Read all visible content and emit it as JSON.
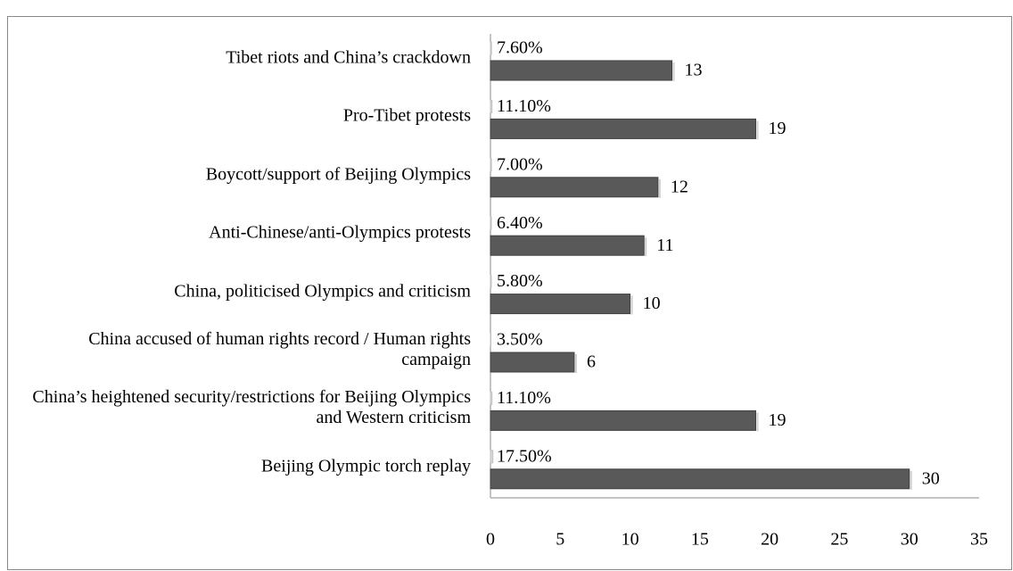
{
  "chart_data": {
    "type": "bar",
    "orientation": "horizontal",
    "categories": [
      "Tibet riots and China’s crackdown",
      "Pro-Tibet protests",
      "Boycott/support of Beijing Olympics",
      "Anti-Chinese/anti-Olympics protests",
      "China, politicised Olympics and criticism",
      "China accused of human rights record / Human rights campaign",
      "China’s heightened security/restrictions for Beijing Olympics and Western criticism",
      "Beijing Olympic torch replay"
    ],
    "series": [
      {
        "color": "#d9d9d9",
        "values": [
          0.076,
          0.111,
          0.07,
          0.064,
          0.058,
          0.035,
          0.111,
          0.175
        ],
        "value_labels": [
          "7.60%",
          "11.10%",
          "7.00%",
          "6.40%",
          "5.80%",
          "3.50%",
          "11.10%",
          "17.50%"
        ]
      },
      {
        "color": "#595959",
        "values": [
          13,
          19,
          12,
          11,
          10,
          6,
          19,
          30
        ]
      }
    ],
    "xlim": [
      0,
      35
    ],
    "xticks": [
      0,
      5,
      10,
      15,
      20,
      25,
      30,
      35
    ],
    "grid": false
  }
}
